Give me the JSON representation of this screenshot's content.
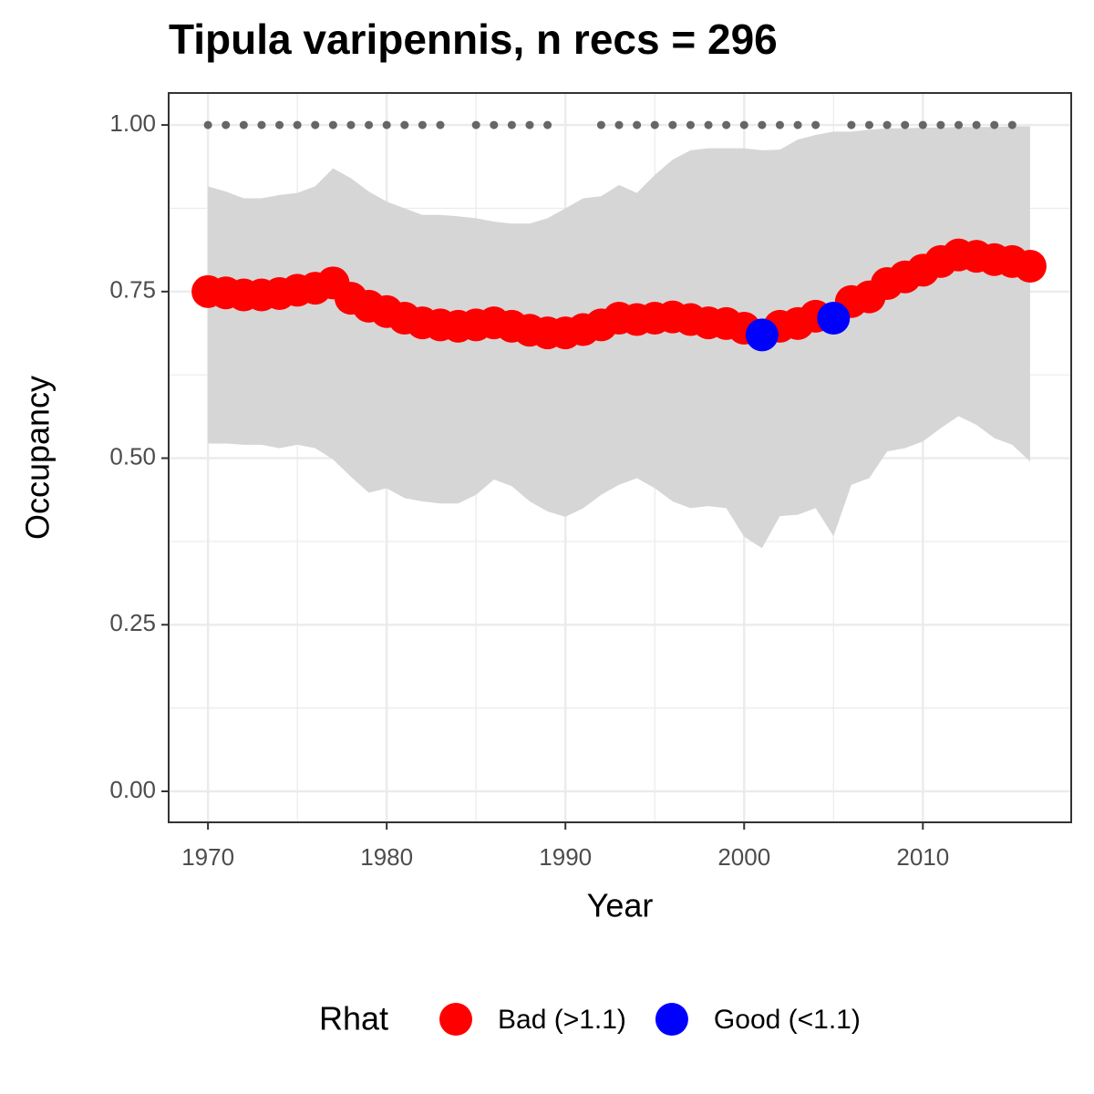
{
  "chart_data": {
    "type": "scatter",
    "title": "Tipula varipennis, n recs = 296",
    "x_label": "Year",
    "y_label": "Occupancy",
    "legend_title": "Rhat",
    "x": [
      1970,
      1971,
      1972,
      1973,
      1974,
      1975,
      1976,
      1977,
      1978,
      1979,
      1980,
      1981,
      1982,
      1983,
      1984,
      1985,
      1986,
      1987,
      1988,
      1989,
      1990,
      1991,
      1992,
      1993,
      1994,
      1995,
      1996,
      1997,
      1998,
      1999,
      2000,
      2001,
      2002,
      2003,
      2004,
      2005,
      2006,
      2007,
      2008,
      2009,
      2010,
      2011,
      2012,
      2013,
      2014,
      2015,
      2016
    ],
    "upper": [
      0.908,
      0.9,
      0.89,
      0.89,
      0.895,
      0.898,
      0.908,
      0.935,
      0.92,
      0.9,
      0.885,
      0.875,
      0.865,
      0.865,
      0.863,
      0.86,
      0.855,
      0.852,
      0.852,
      0.86,
      0.875,
      0.89,
      0.893,
      0.91,
      0.898,
      0.925,
      0.948,
      0.962,
      0.965,
      0.965,
      0.965,
      0.962,
      0.963,
      0.978,
      0.985,
      0.99,
      0.99,
      0.993,
      0.995,
      0.995,
      0.996,
      0.996,
      0.997,
      0.997,
      0.997,
      0.998,
      0.998
    ],
    "lower": [
      0.522,
      0.522,
      0.52,
      0.52,
      0.515,
      0.52,
      0.515,
      0.498,
      0.472,
      0.448,
      0.455,
      0.44,
      0.435,
      0.432,
      0.432,
      0.445,
      0.468,
      0.458,
      0.435,
      0.42,
      0.412,
      0.425,
      0.445,
      0.46,
      0.47,
      0.455,
      0.435,
      0.425,
      0.428,
      0.425,
      0.382,
      0.365,
      0.413,
      0.415,
      0.425,
      0.383,
      0.46,
      0.47,
      0.51,
      0.515,
      0.525,
      0.545,
      0.563,
      0.55,
      0.53,
      0.52,
      0.495
    ],
    "ribbon_color": "#d6d6d6",
    "series": [
      {
        "name": "Bad (>1.1)",
        "color": "#ff0000",
        "values": [
          0.75,
          0.748,
          0.745,
          0.745,
          0.747,
          0.752,
          0.755,
          0.763,
          0.74,
          0.728,
          0.72,
          0.71,
          0.703,
          0.7,
          0.698,
          0.7,
          0.703,
          0.698,
          0.692,
          0.688,
          0.688,
          0.693,
          0.7,
          0.71,
          0.708,
          0.71,
          0.712,
          0.708,
          0.703,
          0.702,
          0.695,
          null,
          0.698,
          0.702,
          0.713,
          null,
          0.735,
          0.742,
          0.762,
          0.772,
          0.782,
          0.795,
          0.805,
          0.803,
          0.798,
          0.795,
          0.788
        ]
      },
      {
        "name": "Good (<1.1)",
        "color": "#0000ff",
        "values": [
          null,
          null,
          null,
          null,
          null,
          null,
          null,
          null,
          null,
          null,
          null,
          null,
          null,
          null,
          null,
          null,
          null,
          null,
          null,
          null,
          null,
          null,
          null,
          null,
          null,
          null,
          null,
          null,
          null,
          null,
          null,
          0.685,
          null,
          null,
          null,
          0.71,
          null,
          null,
          null,
          null,
          null,
          null,
          null,
          null,
          null,
          null,
          null
        ]
      }
    ],
    "records": {
      "y": 1,
      "color": "#666666",
      "x": [
        1970,
        1971,
        1972,
        1973,
        1974,
        1975,
        1976,
        1977,
        1978,
        1979,
        1980,
        1981,
        1982,
        1983,
        1985,
        1986,
        1987,
        1988,
        1989,
        1992,
        1993,
        1994,
        1995,
        1996,
        1997,
        1998,
        1999,
        2000,
        2001,
        2002,
        2003,
        2004,
        2006,
        2007,
        2008,
        2009,
        2010,
        2011,
        2012,
        2013,
        2014,
        2015
      ]
    },
    "xlim": [
      1967.8,
      2018.3
    ],
    "xticks": [
      1970,
      1980,
      1990,
      2000,
      2010
    ],
    "ylim": [
      -0.0465,
      1.048
    ],
    "yticks": [
      {
        "value": 0,
        "label": "0.00"
      },
      {
        "value": 0.25,
        "label": "0.25"
      },
      {
        "value": 0.5,
        "label": "0.50"
      },
      {
        "value": 0.75,
        "label": "0.75"
      },
      {
        "value": 1,
        "label": "1.00"
      }
    ],
    "grid": true
  }
}
